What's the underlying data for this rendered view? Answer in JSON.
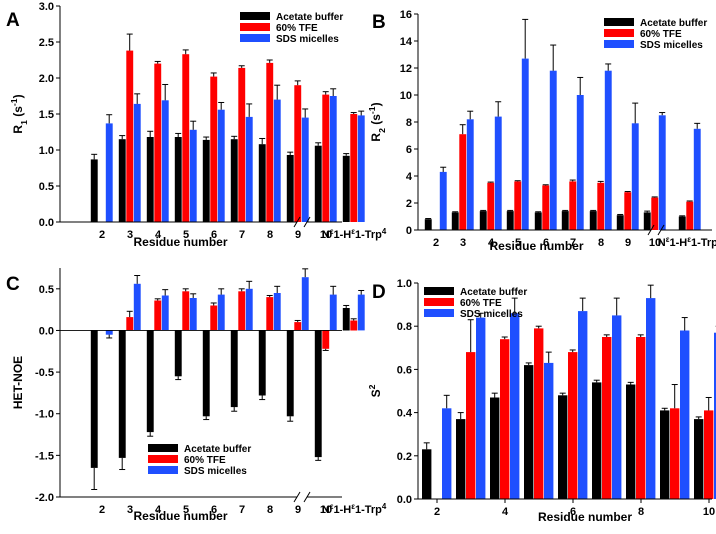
{
  "chart_data": [
    {
      "panel_label": "A",
      "type": "bar",
      "ylabel": "R₁ (s⁻¹)",
      "xlabel": "Residue number",
      "ylim": [
        0,
        3
      ],
      "yticks": [
        "0.0",
        "0.5",
        "1.0",
        "1.5",
        "2.0",
        "2.5",
        "3.0"
      ],
      "ytick_values": [
        0,
        0.5,
        1,
        1.5,
        2,
        2.5,
        3
      ],
      "categories": [
        "2",
        "3",
        "4",
        "5",
        "6",
        "7",
        "8",
        "9",
        "10",
        "Nε1-Hε1-Trp⁴"
      ],
      "legend_position": "top-right",
      "series": [
        {
          "name": "Acetate buffer",
          "color": "#000000",
          "values": [
            0.87,
            1.15,
            1.18,
            1.18,
            1.14,
            1.15,
            1.08,
            0.93,
            1.06,
            0.92
          ],
          "errors": [
            0.07,
            0.05,
            0.08,
            0.05,
            0.04,
            0.04,
            0.08,
            0.04,
            0.04,
            0.03
          ]
        },
        {
          "name": "60% TFE",
          "color": "#ff0000",
          "values": [
            null,
            2.38,
            2.2,
            2.33,
            2.02,
            2.14,
            2.21,
            1.9,
            1.77,
            1.5
          ],
          "errors": [
            null,
            0.23,
            0.03,
            0.06,
            0.05,
            0.03,
            0.04,
            0.06,
            0.04,
            0.02
          ]
        },
        {
          "name": "SDS micelles",
          "color": "#1f4fff",
          "values": [
            1.37,
            1.64,
            1.69,
            1.28,
            1.56,
            1.46,
            1.7,
            1.45,
            1.75,
            1.48
          ],
          "errors": [
            0.12,
            0.14,
            0.22,
            0.12,
            0.1,
            0.18,
            0.2,
            0.12,
            0.1,
            0.06
          ]
        }
      ]
    },
    {
      "panel_label": "B",
      "type": "bar",
      "ylabel": "R₂ (s⁻¹)",
      "xlabel": "Residue number",
      "ylim": [
        0,
        16
      ],
      "yticks": [
        "0",
        "2",
        "4",
        "6",
        "8",
        "10",
        "12",
        "14",
        "16"
      ],
      "ytick_values": [
        0,
        2,
        4,
        6,
        8,
        10,
        12,
        14,
        16
      ],
      "categories": [
        "2",
        "3",
        "4",
        "5",
        "6",
        "7",
        "8",
        "9",
        "10",
        "Nε1-Hε1-Trp⁴"
      ],
      "legend_position": "top-right",
      "series": [
        {
          "name": "Acetate buffer",
          "color": "#000000",
          "values": [
            0.8,
            1.3,
            1.4,
            1.4,
            1.3,
            1.4,
            1.4,
            1.1,
            1.3,
            1.0
          ],
          "errors": [
            0.05,
            0.05,
            0.05,
            0.05,
            0.05,
            0.05,
            0.05,
            0.05,
            0.1,
            0.05
          ]
        },
        {
          "name": "60% TFE",
          "color": "#ff0000",
          "values": [
            null,
            7.1,
            3.5,
            3.6,
            3.3,
            3.6,
            3.5,
            2.8,
            2.4,
            2.1
          ],
          "errors": [
            null,
            0.7,
            0.05,
            0.05,
            0.05,
            0.1,
            0.1,
            0.05,
            0.05,
            0.05
          ]
        },
        {
          "name": "SDS micelles",
          "color": "#1f4fff",
          "values": [
            4.3,
            8.2,
            8.4,
            12.7,
            11.8,
            10.0,
            11.8,
            7.9,
            8.5,
            7.5
          ],
          "errors": [
            0.35,
            0.6,
            1.1,
            2.9,
            1.9,
            1.3,
            0.5,
            1.5,
            0.2,
            0.4
          ]
        }
      ]
    },
    {
      "panel_label": "C",
      "type": "bar",
      "ylabel": "HET-NOE",
      "xlabel": "Residue number",
      "ylim": [
        -2,
        0.75
      ],
      "yticks": [
        "-2.0",
        "-1.5",
        "-1.0",
        "-0.5",
        "0.0",
        "0.5"
      ],
      "ytick_values": [
        -2,
        -1.5,
        -1,
        -0.5,
        0,
        0.5
      ],
      "categories": [
        "2",
        "3",
        "4",
        "5",
        "6",
        "7",
        "8",
        "9",
        "10",
        "Nε1-Hε1-Trp⁴"
      ],
      "legend_position": "bottom-center",
      "series": [
        {
          "name": "Acetate buffer",
          "color": "#000000",
          "values": [
            -1.65,
            -1.53,
            -1.22,
            -0.55,
            -1.03,
            -0.92,
            -0.78,
            -1.03,
            -1.52,
            0.27
          ],
          "errors": [
            0.26,
            0.14,
            0.05,
            0.04,
            0.04,
            0.05,
            0.05,
            0.06,
            0.04,
            0.03
          ]
        },
        {
          "name": "60% TFE",
          "color": "#ff0000",
          "values": [
            null,
            0.16,
            0.36,
            0.47,
            0.3,
            0.47,
            0.4,
            0.1,
            -0.22,
            0.12
          ],
          "errors": [
            null,
            0.07,
            0.02,
            0.03,
            0.03,
            0.03,
            0.02,
            0.02,
            0.02,
            0.02
          ]
        },
        {
          "name": "SDS micelles",
          "color": "#1f4fff",
          "values": [
            -0.05,
            0.56,
            0.42,
            0.39,
            0.43,
            0.5,
            0.45,
            0.64,
            0.43,
            0.43
          ],
          "errors": [
            0.04,
            0.1,
            0.07,
            0.05,
            0.07,
            0.09,
            0.08,
            0.1,
            0.1,
            0.05
          ]
        }
      ]
    },
    {
      "panel_label": "D",
      "type": "bar",
      "ylabel": "S²",
      "xlabel": "Residue number",
      "ylim": [
        0,
        1
      ],
      "yticks": [
        "0.0",
        "0.2",
        "0.4",
        "0.6",
        "0.8",
        "1.0"
      ],
      "ytick_values": [
        0,
        0.2,
        0.4,
        0.6,
        0.8,
        1
      ],
      "categories": [
        "2",
        "3",
        "4",
        "5",
        "6",
        "7",
        "8",
        "9",
        "10"
      ],
      "xtick_labels": [
        "2",
        "",
        "4",
        "",
        "6",
        "",
        "8",
        "",
        "10"
      ],
      "legend_position": "top-left",
      "series": [
        {
          "name": "Acetate buffer",
          "color": "#000000",
          "values": [
            0.23,
            0.37,
            0.47,
            0.62,
            0.48,
            0.54,
            0.53,
            0.41,
            0.37
          ],
          "errors": [
            0.03,
            0.03,
            0.02,
            0.01,
            0.01,
            0.01,
            0.01,
            0.01,
            0.01
          ]
        },
        {
          "name": "60% TFE",
          "color": "#ff0000",
          "values": [
            null,
            0.68,
            0.74,
            0.79,
            0.68,
            0.75,
            0.75,
            0.42,
            0.41
          ],
          "errors": [
            null,
            0.15,
            0.01,
            0.01,
            0.01,
            0.01,
            0.01,
            0.11,
            0.06
          ]
        },
        {
          "name": "SDS micelles",
          "color": "#1f4fff",
          "values": [
            0.42,
            0.84,
            0.86,
            0.63,
            0.87,
            0.85,
            0.93,
            0.78,
            0.77
          ],
          "errors": [
            0.06,
            0.02,
            0.07,
            0.05,
            0.06,
            0.08,
            0.06,
            0.06,
            0.03
          ]
        }
      ]
    }
  ]
}
